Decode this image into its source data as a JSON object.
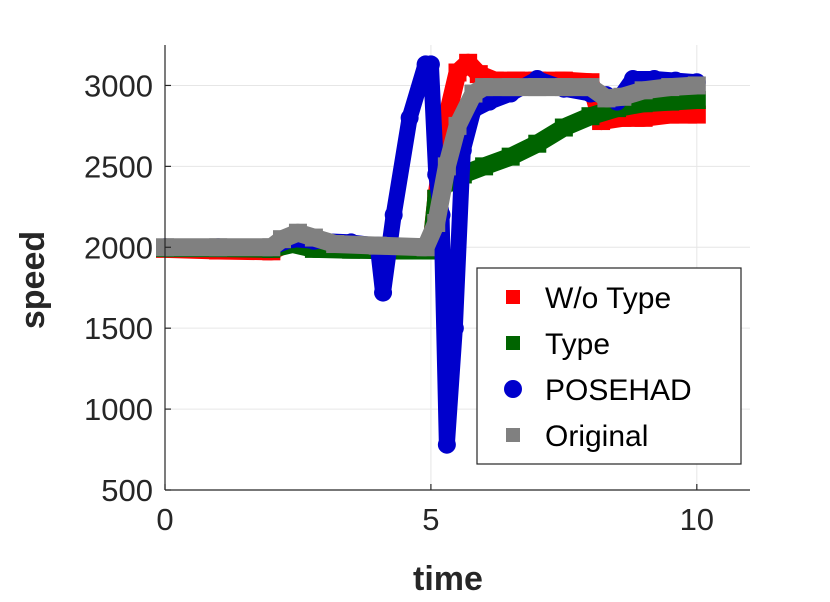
{
  "chart_data": {
    "type": "line",
    "title": "",
    "xlabel": "time",
    "ylabel": "speed",
    "xlim": [
      0,
      11
    ],
    "ylim": [
      500,
      3250
    ],
    "xticks": [
      0,
      5,
      10
    ],
    "xtick_labels": [
      "0",
      "5",
      "10"
    ],
    "yticks": [
      500,
      1000,
      1500,
      2000,
      2500,
      3000
    ],
    "ytick_labels": [
      "500",
      "1000",
      "1500",
      "2000",
      "2500",
      "3000"
    ],
    "grid": true,
    "legend_position": "bottom-right",
    "series": [
      {
        "name": "W/o Type",
        "color": "#ff0000",
        "marker": "square",
        "x": [
          0,
          1,
          2,
          2.4,
          2.8,
          3.5,
          4.5,
          5.0,
          5.1,
          5.3,
          5.5,
          5.7,
          5.9,
          6.2,
          6.6,
          7,
          7.5,
          8.0,
          8.2,
          8.6,
          9,
          9.5,
          10
        ],
        "y": [
          1990,
          1980,
          1975,
          2040,
          2030,
          2010,
          2000,
          1990,
          2300,
          2800,
          3080,
          3140,
          3070,
          3030,
          3030,
          3030,
          3030,
          3020,
          2780,
          2800,
          2800,
          2820,
          2820
        ]
      },
      {
        "name": "Type",
        "color": "#006400",
        "marker": "square",
        "x": [
          0,
          1,
          2,
          2.4,
          2.8,
          3.5,
          4.5,
          5.0,
          5.1,
          5.3,
          5.6,
          6.0,
          6.5,
          7,
          7.5,
          8,
          8.5,
          9,
          9.5,
          10
        ],
        "y": [
          1995,
          1995,
          1990,
          2020,
          1990,
          1985,
          1980,
          1980,
          2300,
          2400,
          2450,
          2500,
          2560,
          2640,
          2740,
          2810,
          2860,
          2890,
          2900,
          2910
        ]
      },
      {
        "name": "POSEHAD",
        "color": "#0000cc",
        "marker": "circle",
        "x": [
          0,
          1,
          2,
          2.4,
          2.8,
          3.5,
          4.0,
          4.1,
          4.3,
          4.6,
          4.9,
          5.0,
          5.1,
          5.2,
          5.3,
          5.45,
          5.6,
          5.8,
          6.1,
          6.5,
          7.0,
          7.5,
          8.0,
          8.3,
          8.5,
          8.8,
          9.2,
          9.6,
          10
        ],
        "y": [
          2000,
          2000,
          2000,
          2050,
          2040,
          2030,
          2010,
          1720,
          2200,
          2800,
          3130,
          3130,
          2450,
          2200,
          780,
          1500,
          2600,
          2850,
          2900,
          2950,
          3040,
          2980,
          2950,
          2940,
          2900,
          3040,
          3040,
          3030,
          3020
        ]
      },
      {
        "name": "Original",
        "color": "#808080",
        "marker": "square",
        "x": [
          0,
          1,
          2,
          2.2,
          2.5,
          2.8,
          3.2,
          4.0,
          4.9,
          5.1,
          5.3,
          5.5,
          5.8,
          6.0,
          6.5,
          7,
          7.5,
          8.0,
          8.3,
          8.6,
          9,
          9.5,
          10
        ],
        "y": [
          2000,
          2000,
          2000,
          2050,
          2090,
          2060,
          2020,
          2010,
          2000,
          2150,
          2500,
          2750,
          2950,
          2990,
          2990,
          2990,
          2990,
          2990,
          2920,
          2930,
          2970,
          2990,
          3000
        ]
      }
    ]
  }
}
